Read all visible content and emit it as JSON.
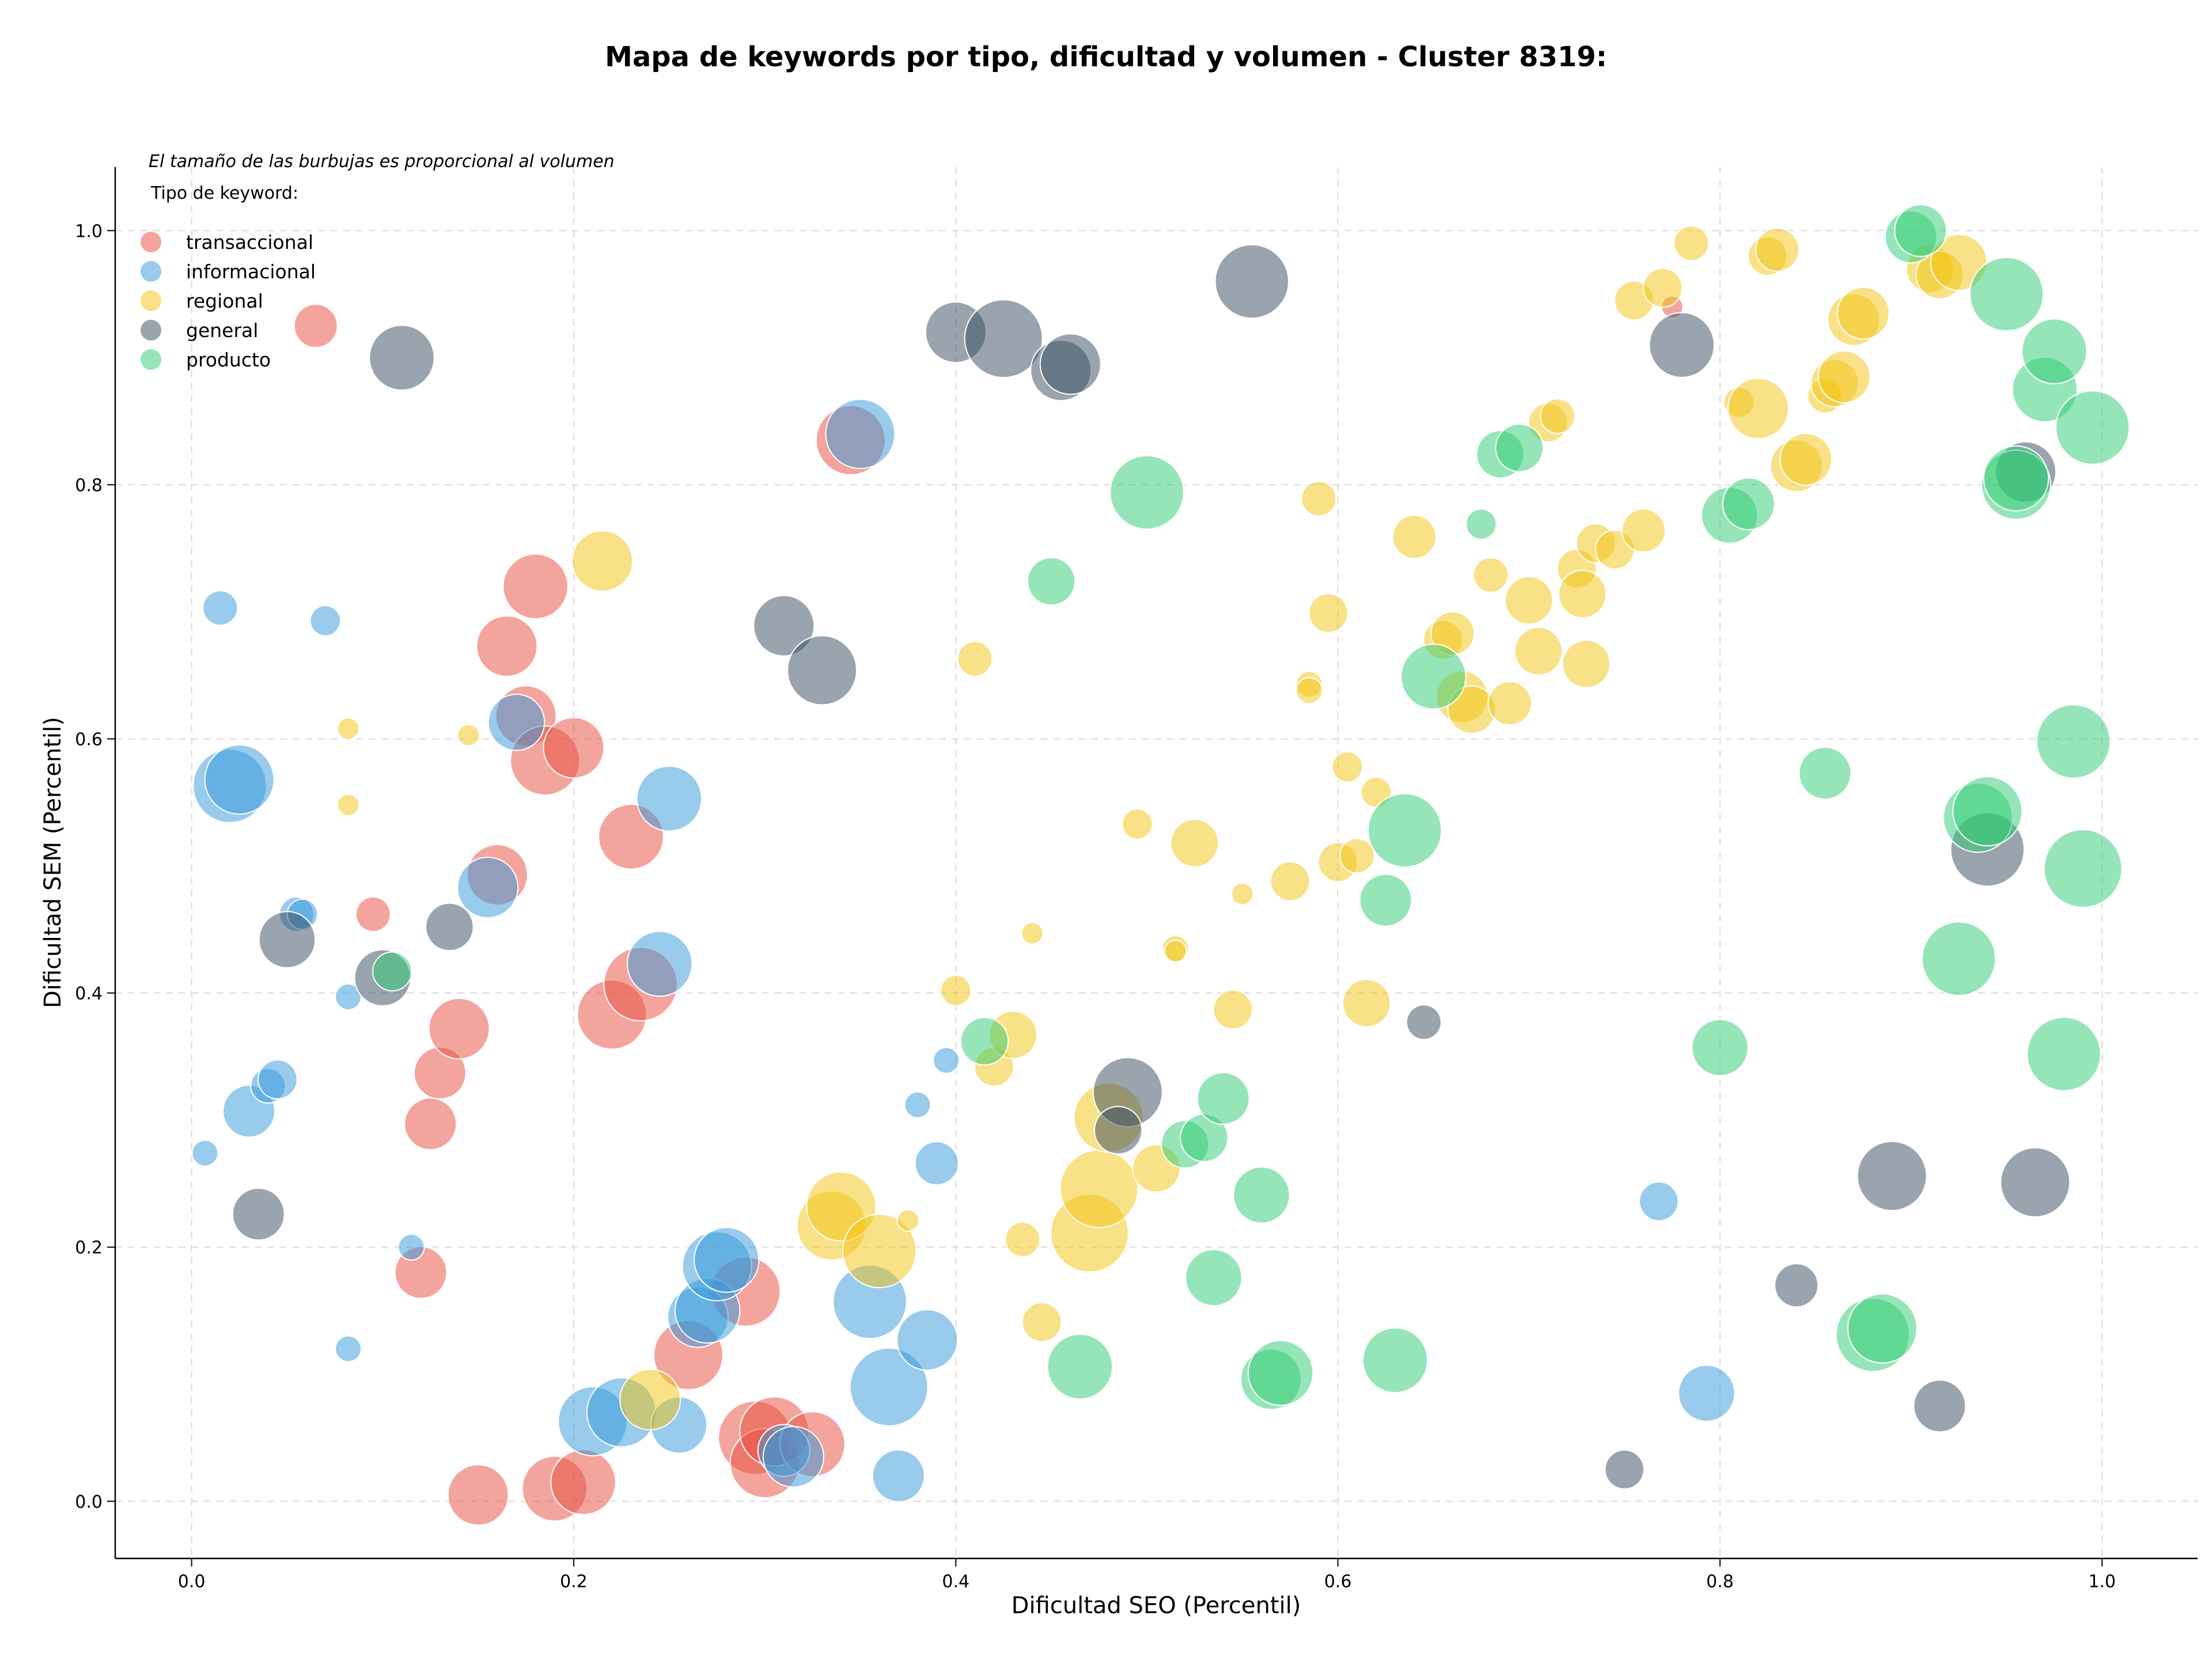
{
  "chart_data": {
    "type": "scatter",
    "title": "Mapa de keywords por tipo, dificultad y volumen - Cluster 8319:",
    "xlabel": "Dificultad SEO (Percentil)",
    "ylabel": "Dificultad SEM (Percentil)",
    "note": "El tamaño de las burbujas es proporcional al volumen",
    "legend_title": "Tipo de keyword:",
    "legend_position": "top-left",
    "grid": true,
    "xlim": [
      -0.04,
      1.05
    ],
    "ylim": [
      -0.045,
      1.05
    ],
    "x_ticks": [
      "0.0",
      "0.2",
      "0.4",
      "0.6",
      "0.8",
      "1.0"
    ],
    "y_ticks": [
      "0.0",
      "0.2",
      "0.4",
      "0.6",
      "0.8",
      "1.0"
    ],
    "series": [
      {
        "name": "transaccional",
        "color": "#e74c3c",
        "points": [
          [
            0.065,
            0.925,
            0.5
          ],
          [
            0.095,
            0.462,
            0.4
          ],
          [
            0.12,
            0.18,
            0.6
          ],
          [
            0.125,
            0.297,
            0.6
          ],
          [
            0.13,
            0.337,
            0.6
          ],
          [
            0.14,
            0.372,
            0.7
          ],
          [
            0.15,
            0.005,
            0.7
          ],
          [
            0.16,
            0.493,
            0.7
          ],
          [
            0.165,
            0.673,
            0.7
          ],
          [
            0.175,
            0.618,
            0.7
          ],
          [
            0.18,
            0.72,
            0.75
          ],
          [
            0.185,
            0.583,
            0.8
          ],
          [
            0.19,
            0.01,
            0.75
          ],
          [
            0.2,
            0.593,
            0.7
          ],
          [
            0.205,
            0.015,
            0.75
          ],
          [
            0.22,
            0.383,
            0.8
          ],
          [
            0.23,
            0.523,
            0.75
          ],
          [
            0.235,
            0.407,
            0.85
          ],
          [
            0.26,
            0.115,
            0.8
          ],
          [
            0.29,
            0.165,
            0.8
          ],
          [
            0.295,
            0.05,
            0.85
          ],
          [
            0.3,
            0.03,
            0.8
          ],
          [
            0.305,
            0.055,
            0.8
          ],
          [
            0.325,
            0.045,
            0.75
          ],
          [
            0.345,
            0.835,
            0.8
          ],
          [
            0.775,
            0.94,
            0.25
          ]
        ]
      },
      {
        "name": "informacional",
        "color": "#3498db",
        "points": [
          [
            0.007,
            0.274,
            0.3
          ],
          [
            0.015,
            0.703,
            0.4
          ],
          [
            0.02,
            0.563,
            0.85
          ],
          [
            0.025,
            0.568,
            0.8
          ],
          [
            0.03,
            0.307,
            0.6
          ],
          [
            0.04,
            0.327,
            0.4
          ],
          [
            0.045,
            0.332,
            0.45
          ],
          [
            0.055,
            0.462,
            0.4
          ],
          [
            0.058,
            0.462,
            0.35
          ],
          [
            0.07,
            0.693,
            0.35
          ],
          [
            0.082,
            0.397,
            0.3
          ],
          [
            0.082,
            0.12,
            0.3
          ],
          [
            0.115,
            0.2,
            0.3
          ],
          [
            0.155,
            0.483,
            0.7
          ],
          [
            0.17,
            0.613,
            0.65
          ],
          [
            0.21,
            0.063,
            0.8
          ],
          [
            0.225,
            0.07,
            0.8
          ],
          [
            0.245,
            0.423,
            0.75
          ],
          [
            0.25,
            0.553,
            0.75
          ],
          [
            0.255,
            0.06,
            0.65
          ],
          [
            0.265,
            0.145,
            0.7
          ],
          [
            0.27,
            0.15,
            0.75
          ],
          [
            0.275,
            0.185,
            0.8
          ],
          [
            0.28,
            0.19,
            0.75
          ],
          [
            0.31,
            0.04,
            0.6
          ],
          [
            0.315,
            0.035,
            0.7
          ],
          [
            0.35,
            0.84,
            0.8
          ],
          [
            0.355,
            0.157,
            0.85
          ],
          [
            0.365,
            0.09,
            0.9
          ],
          [
            0.37,
            0.02,
            0.6
          ],
          [
            0.38,
            0.312,
            0.3
          ],
          [
            0.385,
            0.127,
            0.7
          ],
          [
            0.39,
            0.266,
            0.5
          ],
          [
            0.395,
            0.347,
            0.3
          ],
          [
            0.768,
            0.236,
            0.45
          ],
          [
            0.793,
            0.085,
            0.65
          ]
        ]
      },
      {
        "name": "regional",
        "color": "#f1c40f",
        "points": [
          [
            0.082,
            0.608,
            0.25
          ],
          [
            0.082,
            0.548,
            0.25
          ],
          [
            0.145,
            0.603,
            0.25
          ],
          [
            0.215,
            0.74,
            0.7
          ],
          [
            0.24,
            0.08,
            0.7
          ],
          [
            0.335,
            0.217,
            0.8
          ],
          [
            0.34,
            0.232,
            0.8
          ],
          [
            0.36,
            0.197,
            0.85
          ],
          [
            0.375,
            0.221,
            0.25
          ],
          [
            0.4,
            0.402,
            0.35
          ],
          [
            0.41,
            0.663,
            0.4
          ],
          [
            0.42,
            0.342,
            0.45
          ],
          [
            0.43,
            0.367,
            0.55
          ],
          [
            0.435,
            0.206,
            0.4
          ],
          [
            0.44,
            0.447,
            0.25
          ],
          [
            0.445,
            0.141,
            0.45
          ],
          [
            0.47,
            0.211,
            0.9
          ],
          [
            0.475,
            0.246,
            0.9
          ],
          [
            0.48,
            0.302,
            0.8
          ],
          [
            0.495,
            0.533,
            0.35
          ],
          [
            0.505,
            0.262,
            0.55
          ],
          [
            0.515,
            0.435,
            0.3
          ],
          [
            0.515,
            0.433,
            0.25
          ],
          [
            0.525,
            0.518,
            0.55
          ],
          [
            0.545,
            0.387,
            0.45
          ],
          [
            0.55,
            0.478,
            0.25
          ],
          [
            0.575,
            0.488,
            0.45
          ],
          [
            0.585,
            0.643,
            0.3
          ],
          [
            0.585,
            0.638,
            0.3
          ],
          [
            0.59,
            0.789,
            0.4
          ],
          [
            0.595,
            0.699,
            0.45
          ],
          [
            0.6,
            0.503,
            0.45
          ],
          [
            0.605,
            0.578,
            0.35
          ],
          [
            0.61,
            0.508,
            0.4
          ],
          [
            0.615,
            0.392,
            0.55
          ],
          [
            0.62,
            0.558,
            0.35
          ],
          [
            0.64,
            0.759,
            0.5
          ],
          [
            0.655,
            0.678,
            0.45
          ],
          [
            0.66,
            0.683,
            0.5
          ],
          [
            0.665,
            0.633,
            0.6
          ],
          [
            0.67,
            0.623,
            0.55
          ],
          [
            0.68,
            0.729,
            0.4
          ],
          [
            0.69,
            0.628,
            0.5
          ],
          [
            0.7,
            0.709,
            0.55
          ],
          [
            0.705,
            0.669,
            0.55
          ],
          [
            0.71,
            0.849,
            0.45
          ],
          [
            0.715,
            0.854,
            0.4
          ],
          [
            0.725,
            0.734,
            0.45
          ],
          [
            0.728,
            0.714,
            0.55
          ],
          [
            0.73,
            0.659,
            0.55
          ],
          [
            0.735,
            0.754,
            0.45
          ],
          [
            0.745,
            0.749,
            0.45
          ],
          [
            0.755,
            0.945,
            0.45
          ],
          [
            0.76,
            0.764,
            0.5
          ],
          [
            0.77,
            0.955,
            0.45
          ],
          [
            0.785,
            0.99,
            0.4
          ],
          [
            0.81,
            0.865,
            0.35
          ],
          [
            0.82,
            0.86,
            0.7
          ],
          [
            0.825,
            0.98,
            0.45
          ],
          [
            0.83,
            0.985,
            0.5
          ],
          [
            0.84,
            0.815,
            0.6
          ],
          [
            0.845,
            0.82,
            0.6
          ],
          [
            0.855,
            0.87,
            0.4
          ],
          [
            0.86,
            0.88,
            0.55
          ],
          [
            0.865,
            0.885,
            0.6
          ],
          [
            0.87,
            0.93,
            0.6
          ],
          [
            0.875,
            0.935,
            0.6
          ],
          [
            0.91,
            0.97,
            0.55
          ],
          [
            0.915,
            0.965,
            0.55
          ],
          [
            0.925,
            0.975,
            0.65
          ]
        ]
      },
      {
        "name": "general",
        "color": "#34495e",
        "points": [
          [
            0.035,
            0.226,
            0.6
          ],
          [
            0.05,
            0.442,
            0.65
          ],
          [
            0.1,
            0.412,
            0.65
          ],
          [
            0.11,
            0.9,
            0.75
          ],
          [
            0.135,
            0.452,
            0.55
          ],
          [
            0.31,
            0.689,
            0.7
          ],
          [
            0.33,
            0.654,
            0.8
          ],
          [
            0.4,
            0.92,
            0.7
          ],
          [
            0.425,
            0.915,
            0.9
          ],
          [
            0.455,
            0.89,
            0.7
          ],
          [
            0.46,
            0.895,
            0.7
          ],
          [
            0.49,
            0.322,
            0.8
          ],
          [
            0.485,
            0.292,
            0.55
          ],
          [
            0.555,
            0.96,
            0.85
          ],
          [
            0.645,
            0.377,
            0.4
          ],
          [
            0.75,
            0.025,
            0.45
          ],
          [
            0.78,
            0.91,
            0.75
          ],
          [
            0.84,
            0.17,
            0.5
          ],
          [
            0.89,
            0.256,
            0.8
          ],
          [
            0.915,
            0.075,
            0.6
          ],
          [
            0.94,
            0.513,
            0.85
          ],
          [
            0.96,
            0.81,
            0.7
          ],
          [
            0.965,
            0.251,
            0.8
          ]
        ]
      },
      {
        "name": "producto",
        "color": "#2ecc71",
        "points": [
          [
            0.105,
            0.417,
            0.45
          ],
          [
            0.415,
            0.362,
            0.55
          ],
          [
            0.45,
            0.724,
            0.55
          ],
          [
            0.465,
            0.106,
            0.75
          ],
          [
            0.5,
            0.794,
            0.85
          ],
          [
            0.52,
            0.281,
            0.55
          ],
          [
            0.53,
            0.286,
            0.55
          ],
          [
            0.54,
            0.317,
            0.6
          ],
          [
            0.535,
            0.176,
            0.65
          ],
          [
            0.56,
            0.241,
            0.65
          ],
          [
            0.565,
            0.096,
            0.7
          ],
          [
            0.57,
            0.101,
            0.75
          ],
          [
            0.625,
            0.473,
            0.6
          ],
          [
            0.63,
            0.111,
            0.75
          ],
          [
            0.635,
            0.528,
            0.85
          ],
          [
            0.65,
            0.649,
            0.75
          ],
          [
            0.675,
            0.769,
            0.35
          ],
          [
            0.685,
            0.824,
            0.55
          ],
          [
            0.695,
            0.829,
            0.55
          ],
          [
            0.8,
            0.357,
            0.65
          ],
          [
            0.805,
            0.776,
            0.65
          ],
          [
            0.815,
            0.785,
            0.6
          ],
          [
            0.855,
            0.573,
            0.6
          ],
          [
            0.88,
            0.131,
            0.85
          ],
          [
            0.885,
            0.136,
            0.8
          ],
          [
            0.9,
            0.995,
            0.6
          ],
          [
            0.905,
            1.0,
            0.6
          ],
          [
            0.925,
            0.427,
            0.85
          ],
          [
            0.935,
            0.538,
            0.8
          ],
          [
            0.94,
            0.543,
            0.8
          ],
          [
            0.95,
            0.95,
            0.85
          ],
          [
            0.955,
            0.8,
            0.8
          ],
          [
            0.955,
            0.805,
            0.75
          ],
          [
            0.97,
            0.875,
            0.75
          ],
          [
            0.975,
            0.905,
            0.75
          ],
          [
            0.98,
            0.352,
            0.85
          ],
          [
            0.985,
            0.598,
            0.85
          ],
          [
            0.99,
            0.498,
            0.9
          ],
          [
            0.995,
            0.845,
            0.85
          ]
        ]
      }
    ]
  }
}
